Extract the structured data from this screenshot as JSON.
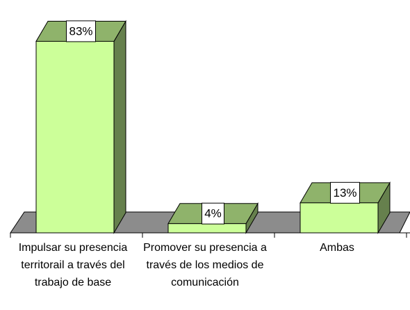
{
  "chart_data": {
    "type": "bar3d",
    "categories": [
      "Impulsar su presencia territorail a través del trabajo de base",
      "Promover su presencia a través de los medios de comunicación",
      "Ambas"
    ],
    "values": [
      83,
      4,
      13
    ],
    "value_labels": [
      "83%",
      "4%",
      "13%"
    ],
    "color": "#ccff99"
  }
}
